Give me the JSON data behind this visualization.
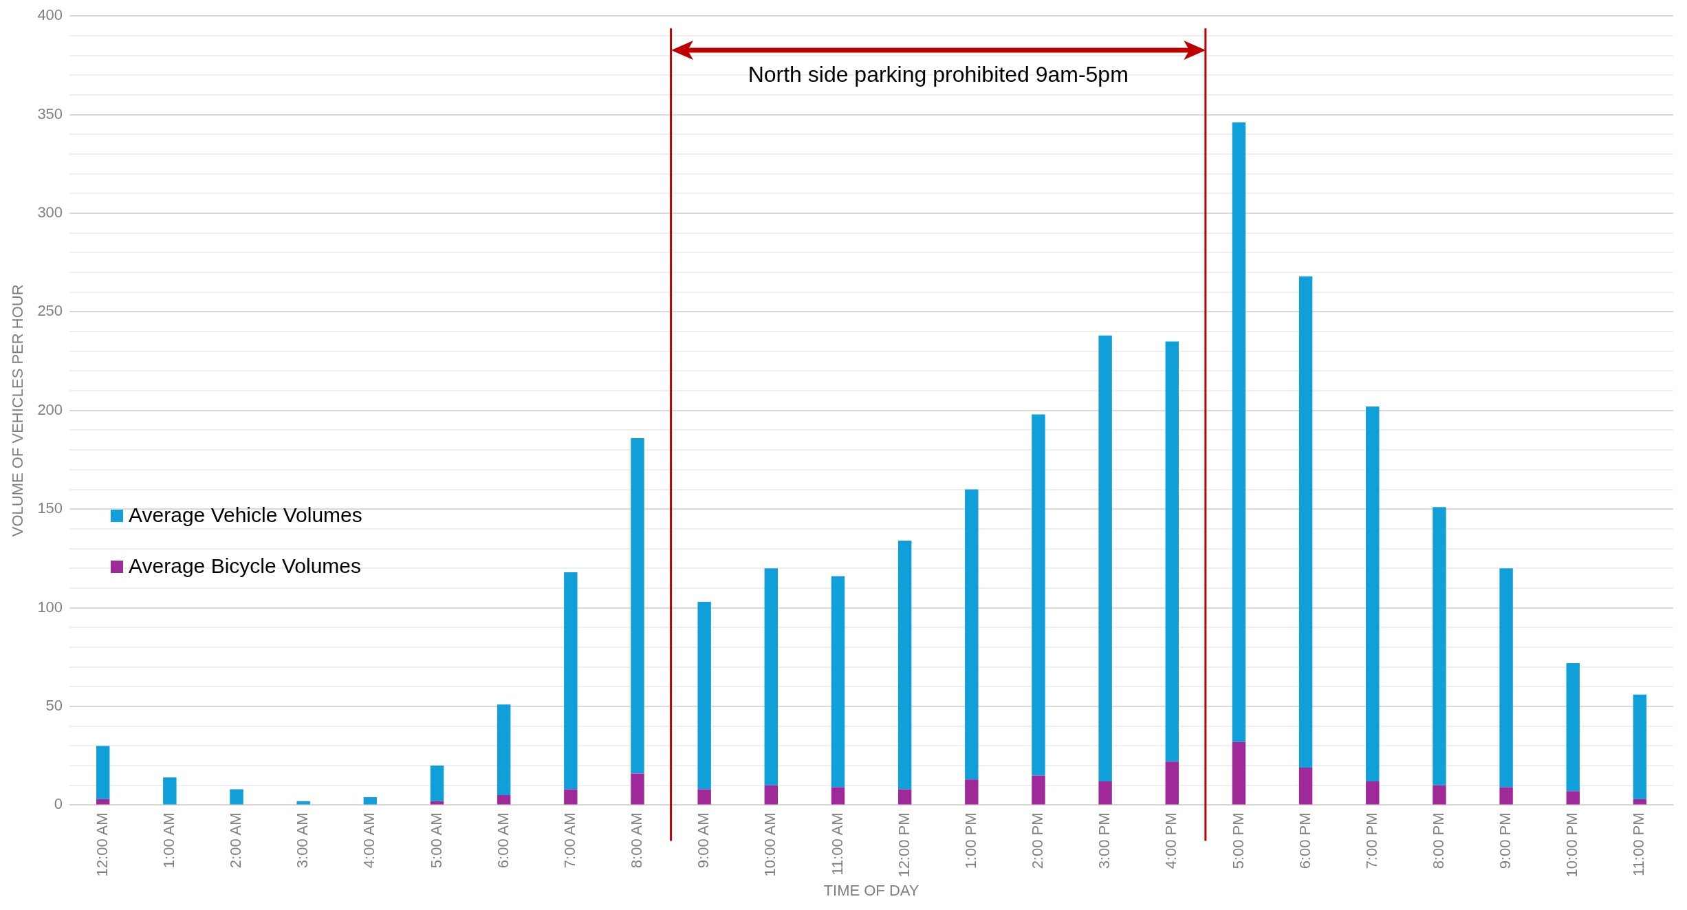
{
  "chart_data": {
    "type": "bar",
    "stacked": true,
    "xlabel": "TIME OF DAY",
    "ylabel": "VOLUME OF VEHICLES PER HOUR",
    "categories": [
      "12:00 AM",
      "1:00 AM",
      "2:00 AM",
      "3:00 AM",
      "4:00 AM",
      "5:00 AM",
      "6:00 AM",
      "7:00 AM",
      "8:00 AM",
      "9:00 AM",
      "10:00 AM",
      "11:00 AM",
      "12:00 PM",
      "1:00 PM",
      "2:00 PM",
      "3:00 PM",
      "4:00 PM",
      "5:00 PM",
      "6:00 PM",
      "7:00 PM",
      "8:00 PM",
      "9:00 PM",
      "10:00 PM",
      "11:00 PM"
    ],
    "series": [
      {
        "name": "Average Bicycle Volumes",
        "color": "#a0299a",
        "values": [
          3,
          0,
          0,
          0,
          0,
          2,
          5,
          8,
          16,
          8,
          10,
          9,
          8,
          13,
          15,
          12,
          22,
          32,
          19,
          12,
          10,
          9,
          7,
          3
        ]
      },
      {
        "name": "Average Vehicle Volumes",
        "color": "#109fd8",
        "values": [
          27,
          14,
          8,
          2,
          4,
          18,
          46,
          110,
          170,
          95,
          110,
          107,
          126,
          147,
          183,
          226,
          213,
          314,
          249,
          190,
          141,
          111,
          65,
          53
        ]
      }
    ],
    "ylim": [
      0,
      400
    ],
    "yticks": [
      0,
      {
        "value": 10,
        "label": null
      },
      {
        "value": 20,
        "label": null
      },
      {
        "value": 30,
        "label": null
      },
      {
        "value": 40,
        "label": null
      },
      50,
      {
        "value": 60,
        "label": null
      },
      {
        "value": 70,
        "label": null
      },
      {
        "value": 80,
        "label": null
      },
      {
        "value": 90,
        "label": null
      },
      100,
      {
        "value": 110,
        "label": null
      },
      {
        "value": 120,
        "label": null
      },
      {
        "value": 130,
        "label": null
      },
      {
        "value": 140,
        "label": null
      },
      150,
      {
        "value": 160,
        "label": null
      },
      {
        "value": 170,
        "label": null
      },
      {
        "value": 180,
        "label": null
      },
      {
        "value": 190,
        "label": null
      },
      200,
      {
        "value": 210,
        "label": null
      },
      {
        "value": 220,
        "label": null
      },
      {
        "value": 230,
        "label": null
      },
      {
        "value": 240,
        "label": null
      },
      250,
      {
        "value": 260,
        "label": null
      },
      {
        "value": 270,
        "label": null
      },
      {
        "value": 280,
        "label": null
      },
      {
        "value": 290,
        "label": null
      },
      300,
      {
        "value": 310,
        "label": null
      },
      {
        "value": 320,
        "label": null
      },
      {
        "value": 330,
        "label": null
      },
      {
        "value": 340,
        "label": null
      },
      350,
      {
        "value": 360,
        "label": null
      },
      {
        "value": 370,
        "label": null
      },
      {
        "value": 380,
        "label": null
      },
      {
        "value": 390,
        "label": null
      },
      400
    ],
    "grid": "y",
    "legend": "left",
    "annotations": [
      "North side parking prohibited 9am-5pm"
    ]
  }
}
